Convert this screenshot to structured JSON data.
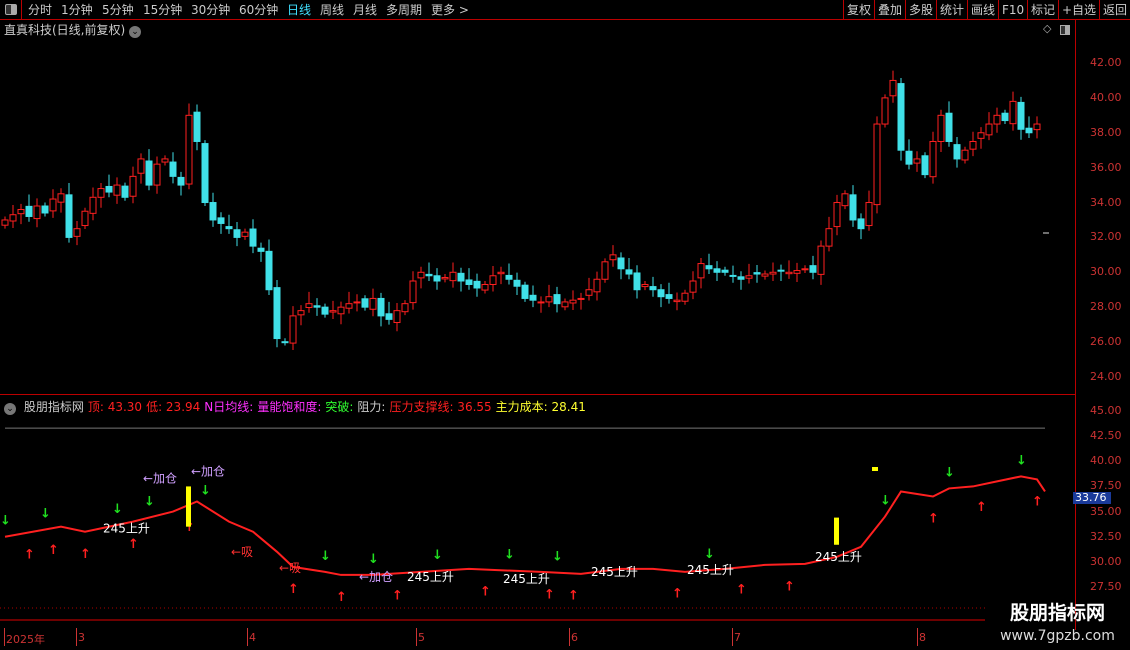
{
  "toolbar": {
    "periods": [
      "分时",
      "1分钟",
      "5分钟",
      "15分钟",
      "30分钟",
      "60分钟",
      "日线",
      "周线",
      "月线",
      "多周期",
      "更多 >"
    ],
    "active": "日线",
    "right_buttons": [
      "复权",
      "叠加",
      "多股",
      "统计",
      "画线",
      "F10",
      "标记",
      "+自选",
      "返回"
    ]
  },
  "stock_title": "直真科技(日线,前复权)",
  "price_axis": [
    "42.00",
    "40.00",
    "38.00",
    "36.00",
    "34.00",
    "32.00",
    "30.00",
    "28.00",
    "26.00",
    "24.00"
  ],
  "indicator": {
    "name": "股朋指标网",
    "items": [
      {
        "text": "顶: 43.30",
        "color": "#ff2020"
      },
      {
        "text": "低: 23.94",
        "color": "#ff2020"
      },
      {
        "text": "N日均线:",
        "color": "#ff30ff"
      },
      {
        "text": "量能饱和度:",
        "color": "#ff30ff"
      },
      {
        "text": "突破:",
        "color": "#30ff30"
      },
      {
        "text": "阻力:",
        "color": "#cccccc"
      },
      {
        "text": "压力支撑线: 36.55",
        "color": "#ff2020"
      },
      {
        "text": "主力成本: 28.41",
        "color": "#ffff30"
      }
    ],
    "axis": [
      "45.00",
      "42.50",
      "40.00",
      "37.50",
      "35.00",
      "32.50",
      "30.00",
      "27.50"
    ],
    "current_value": "33.76"
  },
  "dates": [
    "2025年",
    "3",
    "4",
    "5",
    "6",
    "7",
    "8"
  ],
  "watermark": {
    "name": "股朋指标网",
    "url": "www.7gpzb.com"
  },
  "colors": {
    "up": "#ff2020",
    "down": "#40e0e8",
    "line": "#ff2020",
    "active_period": "#40e0ff"
  },
  "chart_data": {
    "type": "candlestick",
    "price_range": [
      23.5,
      43.5
    ],
    "closes": [
      33.0,
      33.3,
      33.6,
      33.2,
      33.8,
      33.4,
      34.2,
      34.5,
      32.0,
      32.5,
      33.5,
      34.3,
      34.8,
      34.6,
      35.0,
      34.3,
      35.5,
      36.5,
      35.0,
      36.2,
      36.5,
      35.5,
      35.0,
      39.0,
      37.5,
      34.0,
      33.0,
      32.8,
      32.5,
      32.0,
      32.3,
      31.5,
      31.2,
      29.0,
      26.2,
      26.0,
      27.5,
      27.8,
      28.2,
      28.0,
      27.6,
      27.8,
      28.0,
      28.2,
      28.3,
      28.0,
      28.5,
      27.5,
      27.3,
      27.8,
      28.2,
      29.5,
      30.0,
      29.8,
      29.5,
      29.7,
      30.0,
      29.5,
      29.3,
      29.1,
      29.3,
      29.8,
      30.0,
      29.6,
      29.2,
      28.5,
      28.4,
      28.3,
      28.6,
      28.2,
      28.3,
      28.4,
      28.5,
      29.0,
      29.6,
      30.6,
      31.0,
      30.2,
      29.9,
      29.0,
      29.3,
      29.0,
      28.6,
      28.5,
      28.4,
      28.8,
      29.5,
      30.5,
      30.2,
      30.0,
      30.0,
      29.8,
      29.6,
      29.8,
      29.9,
      29.9,
      30.0,
      30.1,
      30.0,
      30.1,
      30.2,
      30.0,
      31.5,
      32.5,
      34.0,
      34.5,
      33.0,
      32.5,
      34.0,
      38.5,
      40.0,
      41.0,
      37.0,
      36.2,
      36.5,
      35.6,
      37.5,
      39.0,
      37.5,
      36.5,
      37.0,
      37.5,
      38.0,
      38.5,
      39.0,
      38.7,
      39.8,
      38.2,
      38.0,
      38.5
    ],
    "indicator_line": [
      [
        0,
        32.5
      ],
      [
        7,
        33.5
      ],
      [
        10,
        33
      ],
      [
        16,
        34
      ],
      [
        21,
        35
      ],
      [
        24,
        36
      ],
      [
        28,
        34
      ],
      [
        31,
        33
      ],
      [
        34,
        31
      ],
      [
        36,
        29.5
      ],
      [
        40,
        29
      ],
      [
        42,
        28.7
      ],
      [
        46,
        28.7
      ],
      [
        52,
        29
      ],
      [
        58,
        29.3
      ],
      [
        67,
        29
      ],
      [
        72,
        28.8
      ],
      [
        77,
        29.3
      ],
      [
        81,
        29.3
      ],
      [
        85,
        29
      ],
      [
        90,
        29.3
      ],
      [
        95,
        29.7
      ],
      [
        100,
        29.8
      ],
      [
        104,
        30.5
      ],
      [
        107,
        31.5
      ],
      [
        110,
        34.5
      ],
      [
        112,
        37
      ],
      [
        116,
        36.5
      ],
      [
        118,
        37.3
      ],
      [
        121,
        37.5
      ],
      [
        124,
        38
      ],
      [
        127,
        38.5
      ],
      [
        129,
        38.2
      ],
      [
        130,
        37
      ]
    ],
    "sell_arrows": [
      0,
      5,
      14,
      18,
      25,
      40,
      46,
      54,
      63,
      69,
      88,
      110,
      118,
      127
    ],
    "buy_arrows": [
      3,
      6,
      10,
      16,
      23,
      36,
      42,
      49,
      60,
      68,
      71,
      84,
      92,
      98,
      116,
      122,
      129
    ],
    "labels": [
      {
        "i": 13,
        "v": 34.2,
        "text": "245上升"
      },
      {
        "i": 18,
        "v": 35.3,
        "text": "←加仓"
      },
      {
        "i": 24,
        "v": 37.3,
        "text": "←加仓"
      },
      {
        "i": 29,
        "v": 30.6,
        "text": "←吸"
      },
      {
        "i": 35,
        "v": 23.8,
        "text": "←吸"
      },
      {
        "i": 45,
        "v": 28.1,
        "text": "←加仓"
      },
      {
        "i": 51,
        "v": 28.1,
        "text": "245上升"
      },
      {
        "i": 63,
        "v": 29.2,
        "text": "245上升"
      },
      {
        "i": 74,
        "v": 28.6,
        "text": "245上升"
      },
      {
        "i": 86,
        "v": 28.8,
        "text": "245上升"
      },
      {
        "i": 102,
        "v": 30.1,
        "text": "245上升"
      }
    ]
  }
}
